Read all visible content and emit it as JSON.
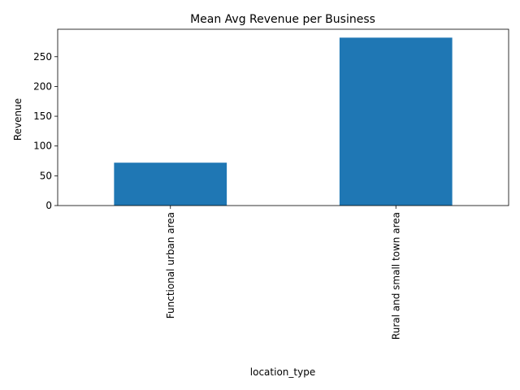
{
  "chart_data": {
    "type": "bar",
    "title": "Mean Avg Revenue per Business",
    "xlabel": "location_type",
    "ylabel": "Revenue",
    "categories": [
      "Functional urban area",
      "Rural and small town area"
    ],
    "values": [
      72,
      282
    ],
    "ylim": [
      0,
      296.1
    ],
    "yticks": [
      0,
      50,
      100,
      150,
      200,
      250
    ],
    "grid": false,
    "legend": "none",
    "bar_color": "#1f77b4"
  }
}
